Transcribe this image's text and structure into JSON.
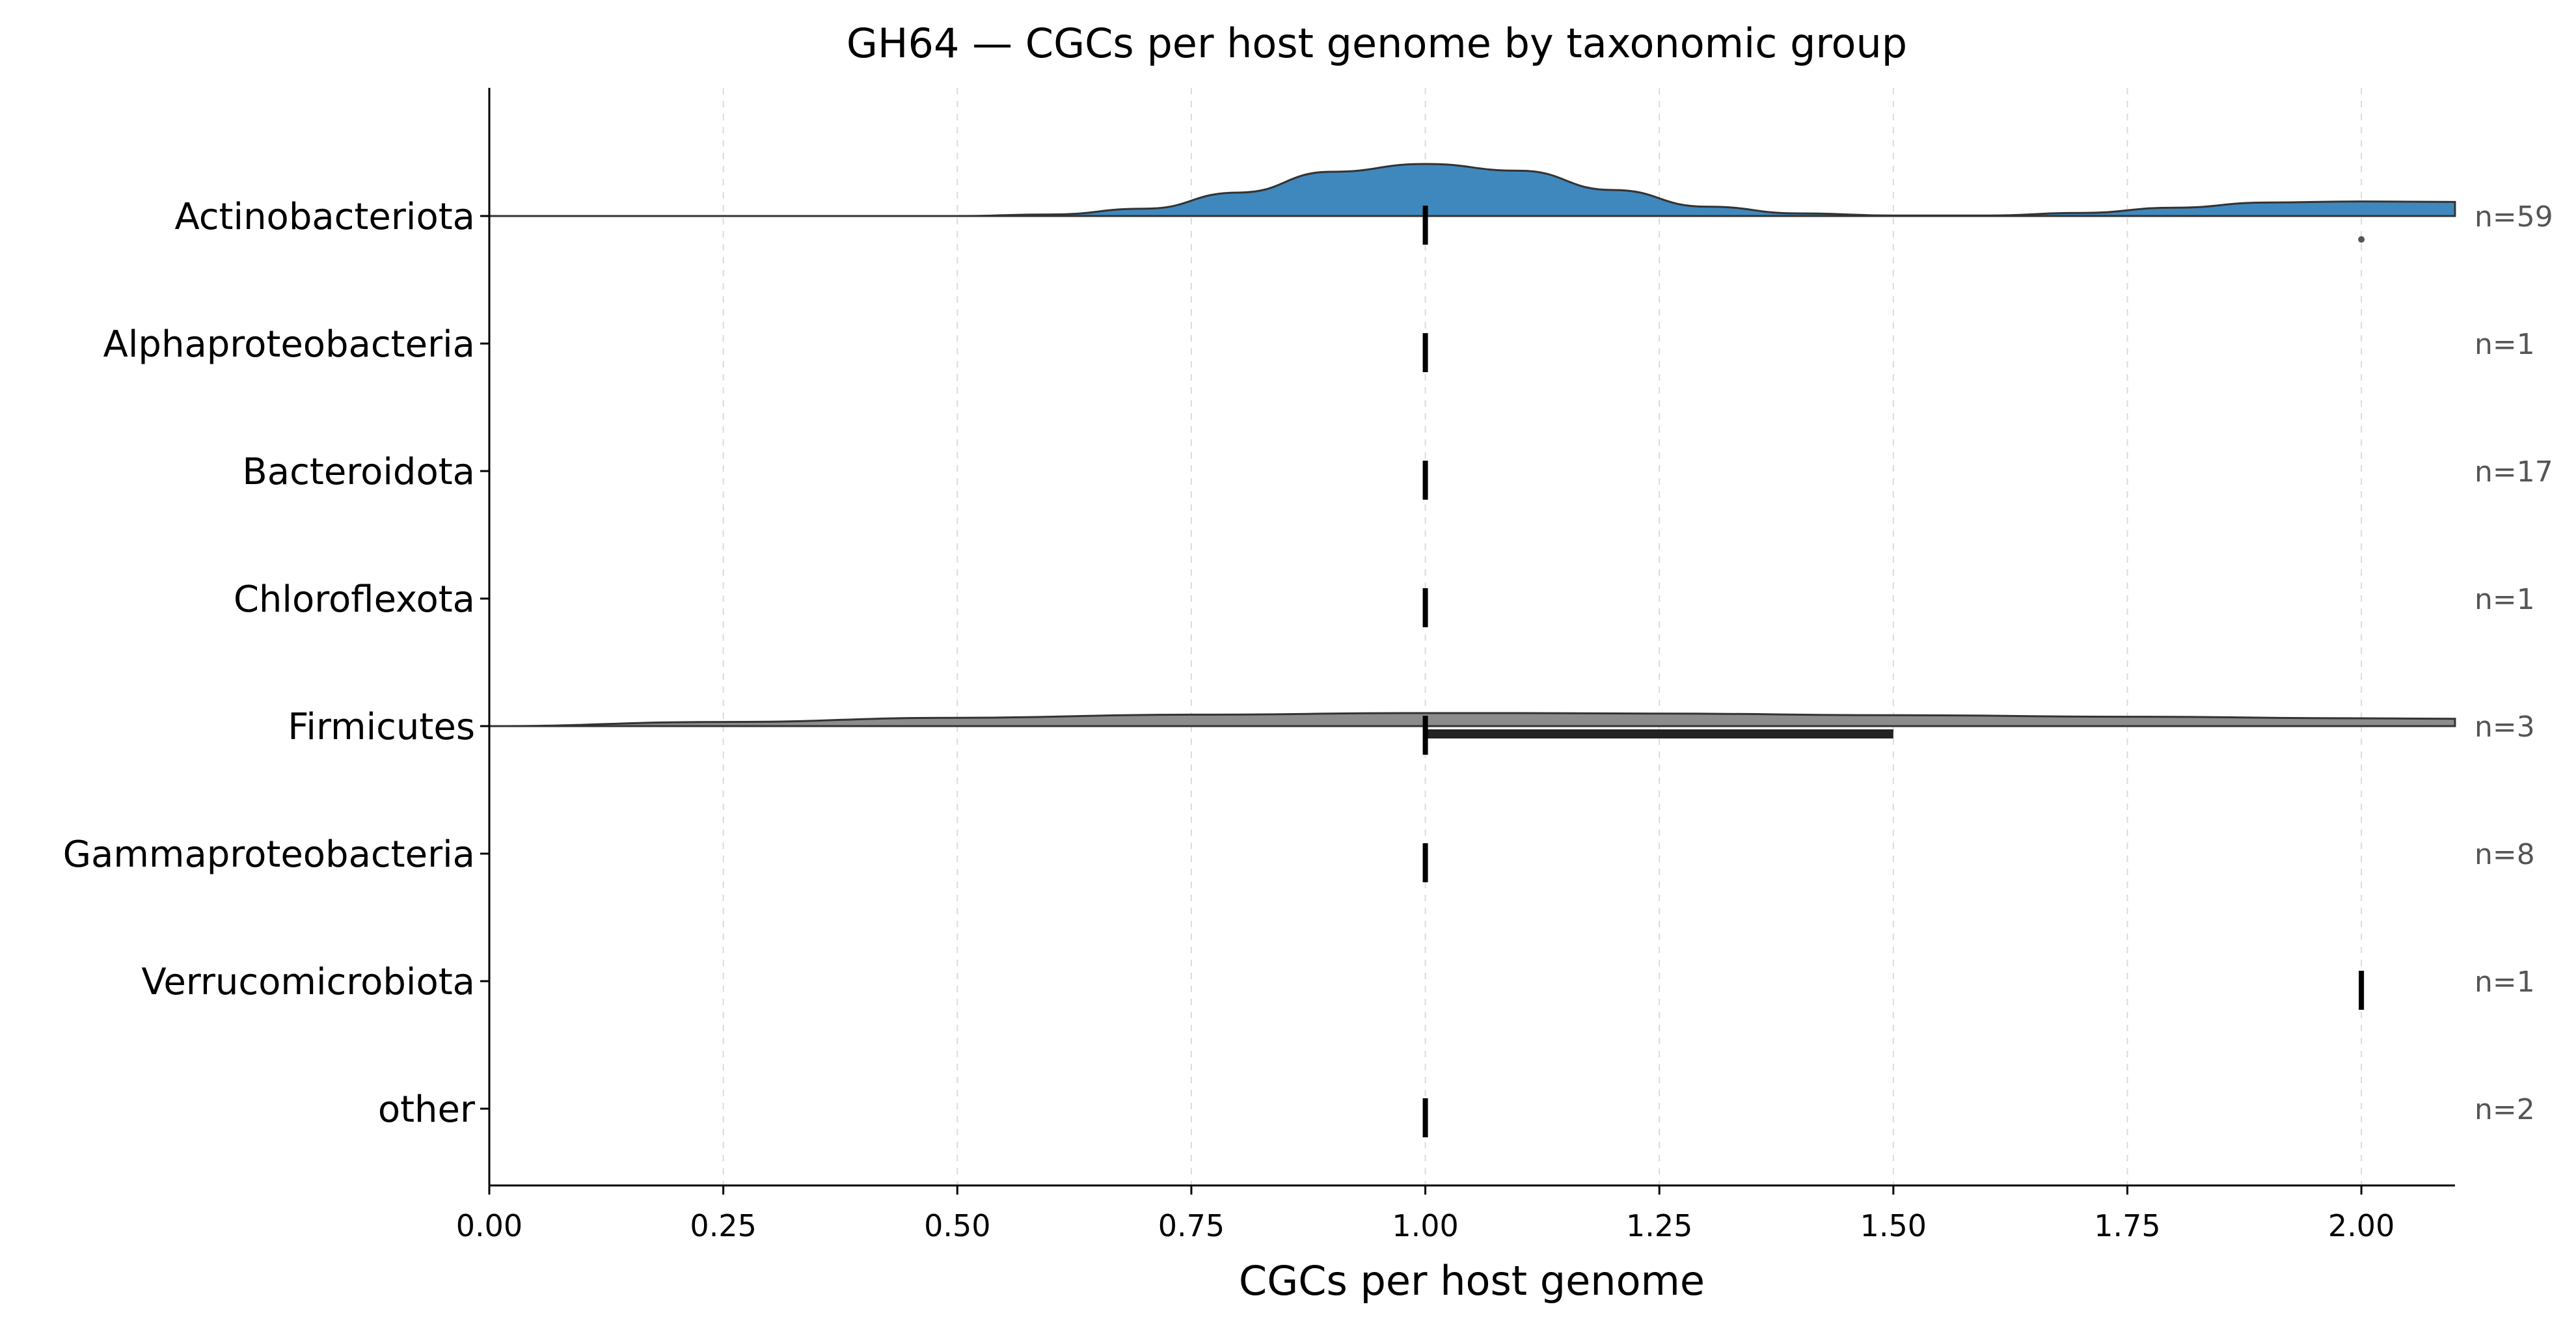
{
  "chart_data": {
    "type": "ridgeline",
    "title": "GH64 — CGCs per host genome by taxonomic group",
    "xlabel": "CGCs per host genome",
    "ylabel": "",
    "xlim": [
      0.0,
      2.1
    ],
    "xticks": [
      "0.00",
      "0.25",
      "0.50",
      "0.75",
      "1.00",
      "1.25",
      "1.50",
      "1.75",
      "2.00"
    ],
    "grid": "vertical dashed",
    "groups": [
      {
        "name": "Actinobacteriota",
        "n_label": "n=59",
        "color": "#3f88be",
        "median": 1.0,
        "q1": 1.0,
        "q3": 1.0,
        "outliers": [
          2.0
        ],
        "density_x": [
          0.0,
          0.5,
          0.6,
          0.7,
          0.8,
          0.9,
          1.0,
          1.1,
          1.2,
          1.3,
          1.4,
          1.5,
          1.6,
          1.7,
          1.8,
          1.9,
          2.0,
          2.1
        ],
        "density_y": [
          0.0,
          0.0,
          0.03,
          0.14,
          0.45,
          0.85,
          1.0,
          0.87,
          0.5,
          0.18,
          0.05,
          0.01,
          0.01,
          0.06,
          0.16,
          0.26,
          0.28,
          0.27
        ]
      },
      {
        "name": "Alphaproteobacteria",
        "n_label": "n=1",
        "color": "",
        "median": 1.0
      },
      {
        "name": "Bacteroidota",
        "n_label": "n=17",
        "color": "",
        "median": 1.0
      },
      {
        "name": "Chloroflexota",
        "n_label": "n=1",
        "color": "",
        "median": 1.0
      },
      {
        "name": "Firmicutes",
        "n_label": "n=3",
        "color": "#8c8c8c",
        "median": 1.0,
        "q1": 1.0,
        "q3": 1.5,
        "outliers": [],
        "density_x": [
          0.0,
          0.25,
          0.5,
          0.75,
          1.0,
          1.1,
          1.25,
          1.5,
          1.75,
          2.0,
          2.1
        ],
        "density_y": [
          0.0,
          0.08,
          0.16,
          0.22,
          0.25,
          0.25,
          0.24,
          0.21,
          0.18,
          0.15,
          0.14
        ]
      },
      {
        "name": "Gammaproteobacteria",
        "n_label": "n=8",
        "color": "",
        "median": 1.0
      },
      {
        "name": "Verrucomicrobiota",
        "n_label": "n=1",
        "color": "",
        "median": 2.0
      },
      {
        "name": "other",
        "n_label": "n=2",
        "color": "",
        "median": 1.0
      }
    ]
  }
}
